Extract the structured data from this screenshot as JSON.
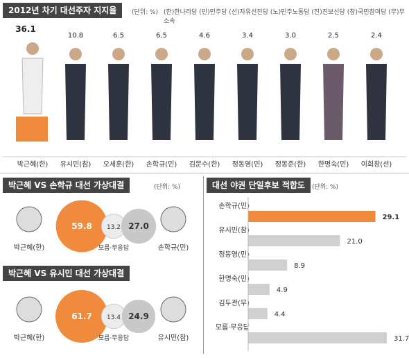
{
  "top": {
    "title": "2012년 차기 대선주자 지지율",
    "unit": "(단위: %)",
    "party_legend": "(한)한나라당 (민)민주당 (선)자유선진당 (노)민주노동당 (진)진보신당 (참)국민참여당 (무)무소속"
  },
  "chart_data": [
    {
      "type": "bar",
      "title": "2012년 차기 대선주자 지지율",
      "unit": "%",
      "categories": [
        "박근혜(한)",
        "유시민(참)",
        "오세훈(한)",
        "손학규(민)",
        "김문수(한)",
        "정동영(민)",
        "정몽준(한)",
        "한명숙(민)",
        "이회창(선)"
      ],
      "values": [
        36.1,
        10.8,
        6.5,
        6.5,
        4.6,
        3.4,
        3.0,
        2.5,
        2.4
      ],
      "labels": [
        "36.1",
        "10.8",
        "6.5",
        "6.5",
        "4.6",
        "3.4",
        "3.0",
        "2.5",
        "2.4"
      ],
      "highlight_color": "#ef8a3c"
    },
    {
      "type": "pie",
      "title": "박근혜 VS 손학규 대선 가상대결",
      "unit": "(단위: %)",
      "categories": [
        "박근혜(한)",
        "모름·무응답",
        "손학규(민)"
      ],
      "values": [
        59.8,
        13.2,
        27.0
      ],
      "labels": [
        "59.8",
        "13.2",
        "27.0"
      ],
      "colors": [
        "#f08a3c",
        "#ececec",
        "#c8c8c8"
      ]
    },
    {
      "type": "pie",
      "title": "박근혜 VS 유시민 대선 가상대결",
      "unit": "",
      "categories": [
        "박근혜(한)",
        "모름·무응답",
        "유시민(참)"
      ],
      "values": [
        61.7,
        13.4,
        24.9
      ],
      "labels": [
        "61.7",
        "13.4",
        "24.9"
      ],
      "colors": [
        "#f08a3c",
        "#ececec",
        "#c8c8c8"
      ]
    },
    {
      "type": "bar",
      "orientation": "horizontal",
      "title": "대선 야권 단일후보 적합도",
      "unit": "(단위: %)",
      "categories": [
        "손학규(민)",
        "유시민(참)",
        "정동영(민)",
        "한명숙(민)",
        "김두관(무)",
        "모름·무응답"
      ],
      "values": [
        29.1,
        21.0,
        8.9,
        4.9,
        4.4,
        31.7
      ],
      "labels": [
        "29.1",
        "21.0",
        "8.9",
        "4.9",
        "4.4",
        "31.7"
      ],
      "bar_colors": [
        "#f08a3c",
        "#d0d0d0",
        "#d0d0d0",
        "#d0d0d0",
        "#d0d0d0",
        "#d0d0d0"
      ]
    }
  ]
}
